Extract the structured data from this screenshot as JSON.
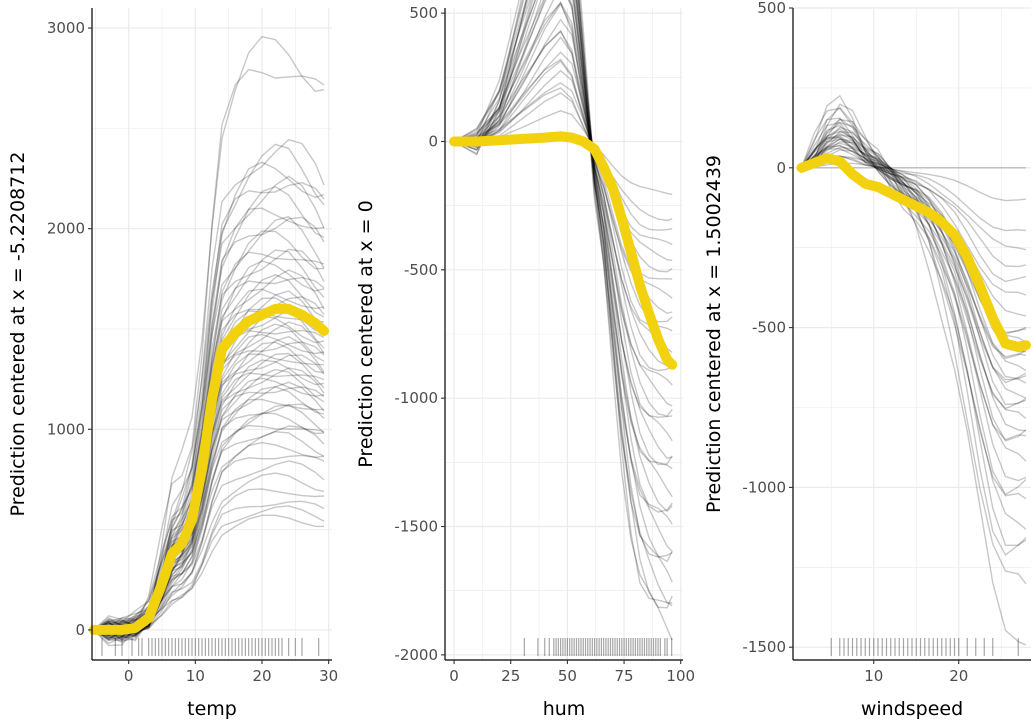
{
  "colors": {
    "background": "#ffffff",
    "grid": "#ebebeb",
    "ice_line": "#000000",
    "pdp_line": "#f2d10f",
    "rug": "#000000",
    "axis_text": "#4d4d4d"
  },
  "chart_data": [
    {
      "type": "line",
      "subtype": "centered-ice",
      "xlabel": "temp",
      "ylabel": "Prediction centered at x = -5.2208712",
      "xlim": [
        -5.5,
        30.5
      ],
      "ylim": [
        -150,
        3100
      ],
      "xticks": [
        0,
        10,
        20,
        30
      ],
      "yticks": [
        0,
        1000,
        2000,
        3000
      ],
      "grid": true,
      "pdp_line": {
        "x": [
          -5.22,
          -3,
          -1,
          1,
          3,
          5,
          6.5,
          8,
          9.5,
          11,
          12.5,
          14,
          16,
          18,
          20,
          22,
          24,
          26,
          28,
          29.3
        ],
        "y": [
          0,
          0,
          0,
          10,
          60,
          230,
          380,
          430,
          550,
          800,
          1150,
          1400,
          1480,
          1540,
          1570,
          1600,
          1600,
          1570,
          1530,
          1490
        ]
      },
      "ice_profile": {
        "x": [
          -5.22,
          -3,
          -1,
          1,
          3,
          5,
          6.5,
          8,
          9.5,
          11,
          12.5,
          14,
          16,
          18,
          20,
          22,
          24,
          26,
          28,
          29.3
        ],
        "shape": [
          0,
          0,
          0,
          0.01,
          0.04,
          0.15,
          0.24,
          0.28,
          0.35,
          0.51,
          0.72,
          0.87,
          0.93,
          0.97,
          0.99,
          1,
          1,
          0.98,
          0.95,
          0.93
        ]
      },
      "ice_endpoints": [
        2900,
        2830,
        2400,
        2350,
        2300,
        2250,
        2200,
        2150,
        2100,
        2050,
        2000,
        1950,
        1900,
        1870,
        1840,
        1810,
        1780,
        1750,
        1720,
        1690,
        1660,
        1640,
        1620,
        1600,
        1580,
        1560,
        1540,
        1520,
        1500,
        1480,
        1460,
        1440,
        1420,
        1400,
        1380,
        1360,
        1340,
        1320,
        1300,
        1280,
        1260,
        1240,
        1220,
        1200,
        1180,
        1150,
        1120,
        1090,
        1060,
        1030,
        1000,
        960,
        920,
        880,
        820,
        760,
        700,
        640,
        600,
        560
      ],
      "rug_x": [
        -4,
        -2,
        -1,
        0.5,
        1.5,
        2,
        3,
        3.5,
        4,
        4.5,
        5,
        5.5,
        6,
        6.5,
        7,
        7.5,
        8,
        8.5,
        9,
        9.5,
        10,
        10.5,
        11,
        11.5,
        12,
        12.5,
        13,
        13.5,
        14,
        14.5,
        15,
        15.5,
        16,
        16.5,
        17,
        17.5,
        18,
        18.5,
        19,
        19.5,
        20,
        20.5,
        21,
        21.5,
        22,
        22.5,
        23,
        24,
        25,
        26,
        28.5
      ]
    },
    {
      "type": "line",
      "subtype": "centered-ice",
      "xlabel": "hum",
      "ylabel": "Prediction centered at x = 0",
      "xlim": [
        -4,
        101
      ],
      "ylim": [
        -2020,
        520
      ],
      "xticks": [
        0,
        25,
        50,
        75,
        100
      ],
      "yticks": [
        500,
        0,
        -500,
        -1000,
        -1500,
        -2000
      ],
      "grid": true,
      "pdp_line": {
        "x": [
          0,
          10,
          20,
          30,
          40,
          47,
          52,
          57,
          62,
          66,
          70,
          74,
          78,
          82,
          86,
          90,
          94,
          96.25
        ],
        "y": [
          0,
          0,
          5,
          10,
          15,
          20,
          15,
          0,
          -30,
          -100,
          -180,
          -300,
          -430,
          -560,
          -670,
          -770,
          -850,
          -870
        ]
      },
      "ice_profile": {
        "x": [
          0,
          10,
          20,
          30,
          40,
          47,
          52,
          57,
          62,
          66,
          70,
          74,
          78,
          82,
          86,
          90,
          94,
          96.25
        ],
        "shape": [
          0,
          0,
          0.1,
          0.3,
          0.5,
          0.6,
          0.5,
          0.2,
          -0.1,
          -0.25,
          -0.45,
          -0.65,
          -0.8,
          -0.9,
          -0.95,
          -0.98,
          -1,
          -1
        ]
      },
      "ice_endpoints": [
        -200,
        -300,
        -350,
        -400,
        -450,
        -500,
        -550,
        -600,
        -650,
        -700,
        -750,
        -800,
        -850,
        -900,
        -950,
        -1000,
        -1050,
        -1100,
        -1150,
        -1200,
        -1250,
        -1300,
        -1350,
        -1400,
        -1450,
        -1500,
        -1550,
        -1600,
        -1650,
        -1700,
        -1750,
        -1800,
        -1850,
        -1900
      ],
      "rug_x": [
        31,
        37,
        40,
        42,
        44,
        45,
        46,
        47,
        48,
        49,
        50,
        51,
        52,
        53,
        54,
        55,
        56,
        57,
        58,
        59,
        60,
        61,
        62,
        63,
        64,
        65,
        66,
        67,
        68,
        69,
        70,
        71,
        72,
        73,
        74,
        75,
        76,
        77,
        78,
        79,
        80,
        81,
        82,
        83,
        84,
        85,
        86,
        87,
        88,
        89,
        90,
        91,
        93,
        94,
        96
      ]
    },
    {
      "type": "line",
      "subtype": "centered-ice",
      "xlabel": "windspeed",
      "ylabel": "Prediction centered at x = 1.5002439",
      "xlim": [
        0.5,
        28.5
      ],
      "ylim": [
        -1540,
        500
      ],
      "xticks": [
        10,
        20
      ],
      "yticks": [
        500,
        0,
        -500,
        -1000,
        -1500
      ],
      "grid": true,
      "pdp_line": {
        "x": [
          1.5,
          3,
          4.5,
          6,
          7.5,
          9,
          10.5,
          12,
          13.5,
          15,
          16.5,
          18,
          19.5,
          21,
          22.5,
          24,
          25.5,
          27,
          27.9
        ],
        "y": [
          0,
          15,
          30,
          20,
          -20,
          -50,
          -60,
          -80,
          -100,
          -120,
          -140,
          -170,
          -210,
          -280,
          -370,
          -470,
          -550,
          -560,
          -555
        ]
      },
      "ice_profile": {
        "x": [
          1.5,
          3,
          4.5,
          6,
          7.5,
          9,
          10.5,
          12,
          13.5,
          15,
          16.5,
          18,
          19.5,
          21,
          22.5,
          24,
          25.5,
          27,
          27.9
        ],
        "shape": [
          0,
          0.05,
          0.12,
          0.15,
          0.12,
          0.06,
          0.02,
          -0.03,
          -0.08,
          -0.13,
          -0.2,
          -0.3,
          -0.42,
          -0.58,
          -0.76,
          -0.92,
          -1,
          -1,
          -1
        ]
      },
      "ice_endpoints": [
        0,
        -100,
        -200,
        -250,
        -300,
        -350,
        -400,
        -450,
        -500,
        -520,
        -540,
        -560,
        -580,
        -600,
        -620,
        -640,
        -660,
        -680,
        -700,
        -720,
        -750,
        -780,
        -800,
        -830,
        -860,
        -900,
        -950,
        -1000,
        -1050,
        -1100,
        -1150,
        -1200,
        -1300,
        -1450
      ],
      "rug_x": [
        5,
        6,
        6.5,
        7,
        7.5,
        8,
        8.5,
        9,
        9.5,
        10,
        10.5,
        11,
        11.5,
        12,
        12.5,
        13,
        13.5,
        14,
        14.5,
        15,
        15.5,
        16,
        16.5,
        17,
        17.5,
        18,
        18.5,
        19,
        19.5,
        20,
        21,
        22,
        23,
        24,
        27
      ]
    }
  ]
}
